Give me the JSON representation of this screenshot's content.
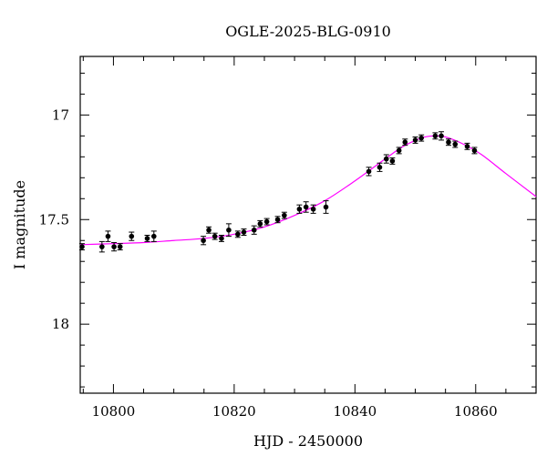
{
  "chart_data": {
    "type": "scatter",
    "title": "OGLE-2025-BLG-0910",
    "xlabel": "HJD - 2450000",
    "ylabel": "I magnitude",
    "xlim": [
      10794.5,
      10870
    ],
    "ylim": [
      18.33,
      16.72
    ],
    "y_inverted": true,
    "xticks": [
      10800,
      10820,
      10840,
      10860
    ],
    "yticks": [
      17,
      17.5,
      18
    ],
    "grid": false,
    "legend": "none",
    "colors": {
      "model": "#ff00ff",
      "points": "#000000"
    },
    "series": [
      {
        "kind": "points_with_errors",
        "x": [
          10794.8,
          10798.1,
          10799.1,
          10800.1,
          10801.1,
          10803.0,
          10805.6,
          10806.7,
          10814.9,
          10815.8,
          10816.8,
          10817.9,
          10819.1,
          10820.6,
          10821.6,
          10823.3,
          10824.3,
          10825.4,
          10827.2,
          10828.3,
          10830.8,
          10831.9,
          10833.1,
          10835.2,
          10842.3,
          10844.1,
          10845.2,
          10846.2,
          10847.3,
          10848.3,
          10850.0,
          10851.0,
          10853.3,
          10854.3,
          10855.5,
          10856.6,
          10858.6,
          10859.8
        ],
        "y": [
          17.63,
          17.63,
          17.58,
          17.63,
          17.63,
          17.58,
          17.59,
          17.58,
          17.6,
          17.55,
          17.58,
          17.59,
          17.55,
          17.57,
          17.56,
          17.55,
          17.52,
          17.51,
          17.5,
          17.48,
          17.45,
          17.44,
          17.45,
          17.44,
          17.27,
          17.25,
          17.21,
          17.22,
          17.17,
          17.13,
          17.12,
          17.11,
          17.1,
          17.1,
          17.13,
          17.14,
          17.15,
          17.17
        ],
        "err": [
          0.015,
          0.025,
          0.025,
          0.02,
          0.015,
          0.02,
          0.015,
          0.025,
          0.02,
          0.015,
          0.015,
          0.015,
          0.03,
          0.015,
          0.015,
          0.02,
          0.015,
          0.015,
          0.015,
          0.015,
          0.02,
          0.025,
          0.02,
          0.03,
          0.02,
          0.02,
          0.02,
          0.015,
          0.015,
          0.015,
          0.015,
          0.015,
          0.015,
          0.02,
          0.015,
          0.015,
          0.015,
          0.015
        ]
      },
      {
        "kind": "model_curve",
        "x": [
          10794.5,
          10800,
          10805,
          10810,
          10815,
          10820,
          10825,
          10830,
          10835,
          10840,
          10845,
          10848,
          10851,
          10853,
          10855,
          10858,
          10861,
          10865,
          10870
        ],
        "y": [
          17.62,
          17.615,
          17.61,
          17.6,
          17.59,
          17.57,
          17.535,
          17.48,
          17.41,
          17.315,
          17.21,
          17.15,
          17.11,
          17.1,
          17.105,
          17.14,
          17.19,
          17.28,
          17.39
        ]
      }
    ]
  }
}
